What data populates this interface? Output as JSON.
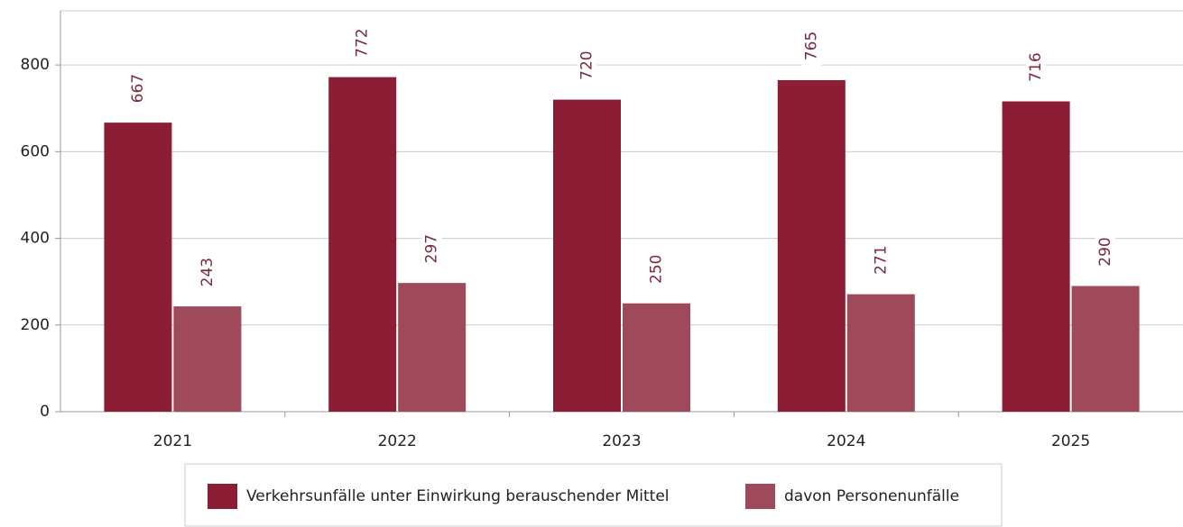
{
  "chart_data": {
    "type": "bar",
    "categories": [
      "2021",
      "2022",
      "2023",
      "2024",
      "2025"
    ],
    "series": [
      {
        "name": "Verkehrsunfälle unter Einwirkung berauschender Mittel",
        "color": "#8b1e34",
        "values": [
          667,
          772,
          720,
          765,
          716
        ]
      },
      {
        "name": "davon Personenunfälle",
        "color": "#9e4a5a",
        "values": [
          243,
          297,
          250,
          271,
          290
        ]
      }
    ],
    "ylim": [
      0,
      925
    ],
    "yticks": [
      0,
      200,
      400,
      600,
      800
    ],
    "grid": true,
    "legend": "bottom"
  }
}
